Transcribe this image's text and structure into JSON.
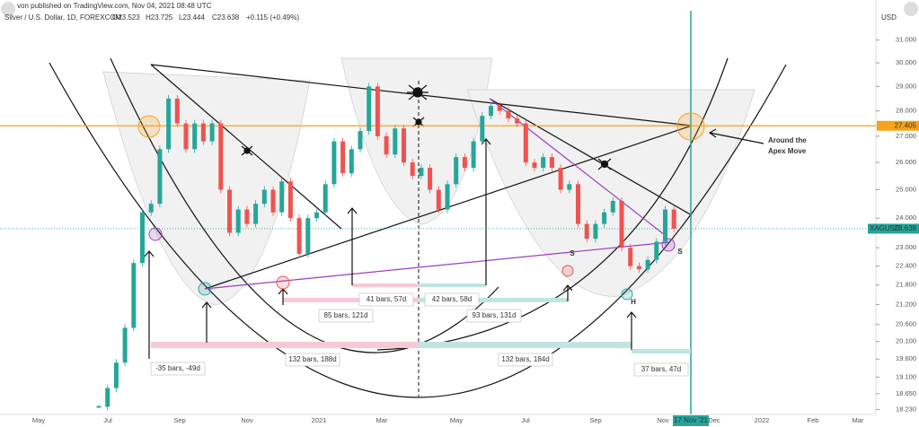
{
  "header": {
    "published": "von published on TradingView.com, Nov 04, 2021 08:48 UTC",
    "symbol": "Silver / U.S. Dollar, 1D, FOREXCOM",
    "ohlc": [
      "O23.523",
      "H23.725",
      "L23.444",
      "C23.638",
      "+0.115 (+0.49%)"
    ]
  },
  "chart_data": {
    "type": "candlestick",
    "currency": "USD",
    "log_scale": true,
    "ylim": [
      18.1,
      32.5
    ],
    "yticks": [
      {
        "value": 31,
        "label": "31.000"
      },
      {
        "value": 30,
        "label": "30.000"
      },
      {
        "value": 29,
        "label": "29.000"
      },
      {
        "value": 28,
        "label": "28.000"
      },
      {
        "value": 27,
        "label": "27.000"
      },
      {
        "value": 26,
        "label": "26.000"
      },
      {
        "value": 25,
        "label": "25.000"
      },
      {
        "value": 24,
        "label": "24.000"
      },
      {
        "value": 23,
        "label": "23.000"
      },
      {
        "value": 22.4,
        "label": "22.400"
      },
      {
        "value": 21.8,
        "label": "21.800"
      },
      {
        "value": 21.2,
        "label": "21.200"
      },
      {
        "value": 20.6,
        "label": "20.600"
      },
      {
        "value": 20.1,
        "label": "20.100"
      },
      {
        "value": 19.6,
        "label": "19.600"
      },
      {
        "value": 19.1,
        "label": "19.100"
      },
      {
        "value": 18.65,
        "label": "18.650"
      },
      {
        "value": 18.23,
        "label": "18.230"
      }
    ],
    "xticks": [
      "May",
      "Jul",
      "Sep",
      "Nov",
      "2021",
      "Mar",
      "May",
      "Jul",
      "Sep",
      "Nov",
      "Dec",
      "2022",
      "Feb",
      "Mar"
    ],
    "series": [
      {
        "name": "XAGUSD",
        "color_up": "#26a69a",
        "color_down": "#ef5350",
        "values": [
          18.3,
          18.8,
          19.5,
          20.5,
          22.5,
          24.2,
          24.5,
          26.5,
          28.5,
          27.5,
          26.5,
          27.5,
          26.8,
          27.5,
          25.0,
          23.5,
          24.3,
          23.8,
          24.5,
          25.0,
          24.2,
          25.3,
          24.0,
          22.8,
          24.0,
          24.2,
          25.2,
          26.8,
          25.6,
          26.5,
          27.2,
          29.0,
          27.0,
          26.3,
          27.3,
          26.0,
          25.5,
          25.8,
          25.0,
          24.3,
          25.2,
          26.2,
          25.8,
          26.8,
          27.8,
          28.2,
          28.0,
          27.7,
          27.5,
          26.0,
          25.8,
          26.2,
          25.8,
          25.0,
          25.2,
          23.8,
          23.3,
          23.8,
          24.2,
          24.6,
          23.0,
          22.4,
          22.3,
          22.6,
          23.2,
          24.3,
          23.638
        ]
      }
    ],
    "price_lines": [
      {
        "value": 27.405,
        "color": "#f7a21b"
      },
      {
        "value": 23.638,
        "color": "#26a69a"
      }
    ],
    "date_label": "17 Nov '21",
    "apex_note": [
      "Around the",
      "Apex Move"
    ],
    "range_labels": [
      "41 bars, 57d",
      "42 bars, 58d",
      "85 bars, 121d",
      "93 bars, 131d",
      "-35 bars, -49d",
      "132 bars, 188d",
      "132 bars, 184d",
      "37 bars, 47d"
    ],
    "pattern_labels": [
      "S",
      "S",
      "H"
    ]
  }
}
